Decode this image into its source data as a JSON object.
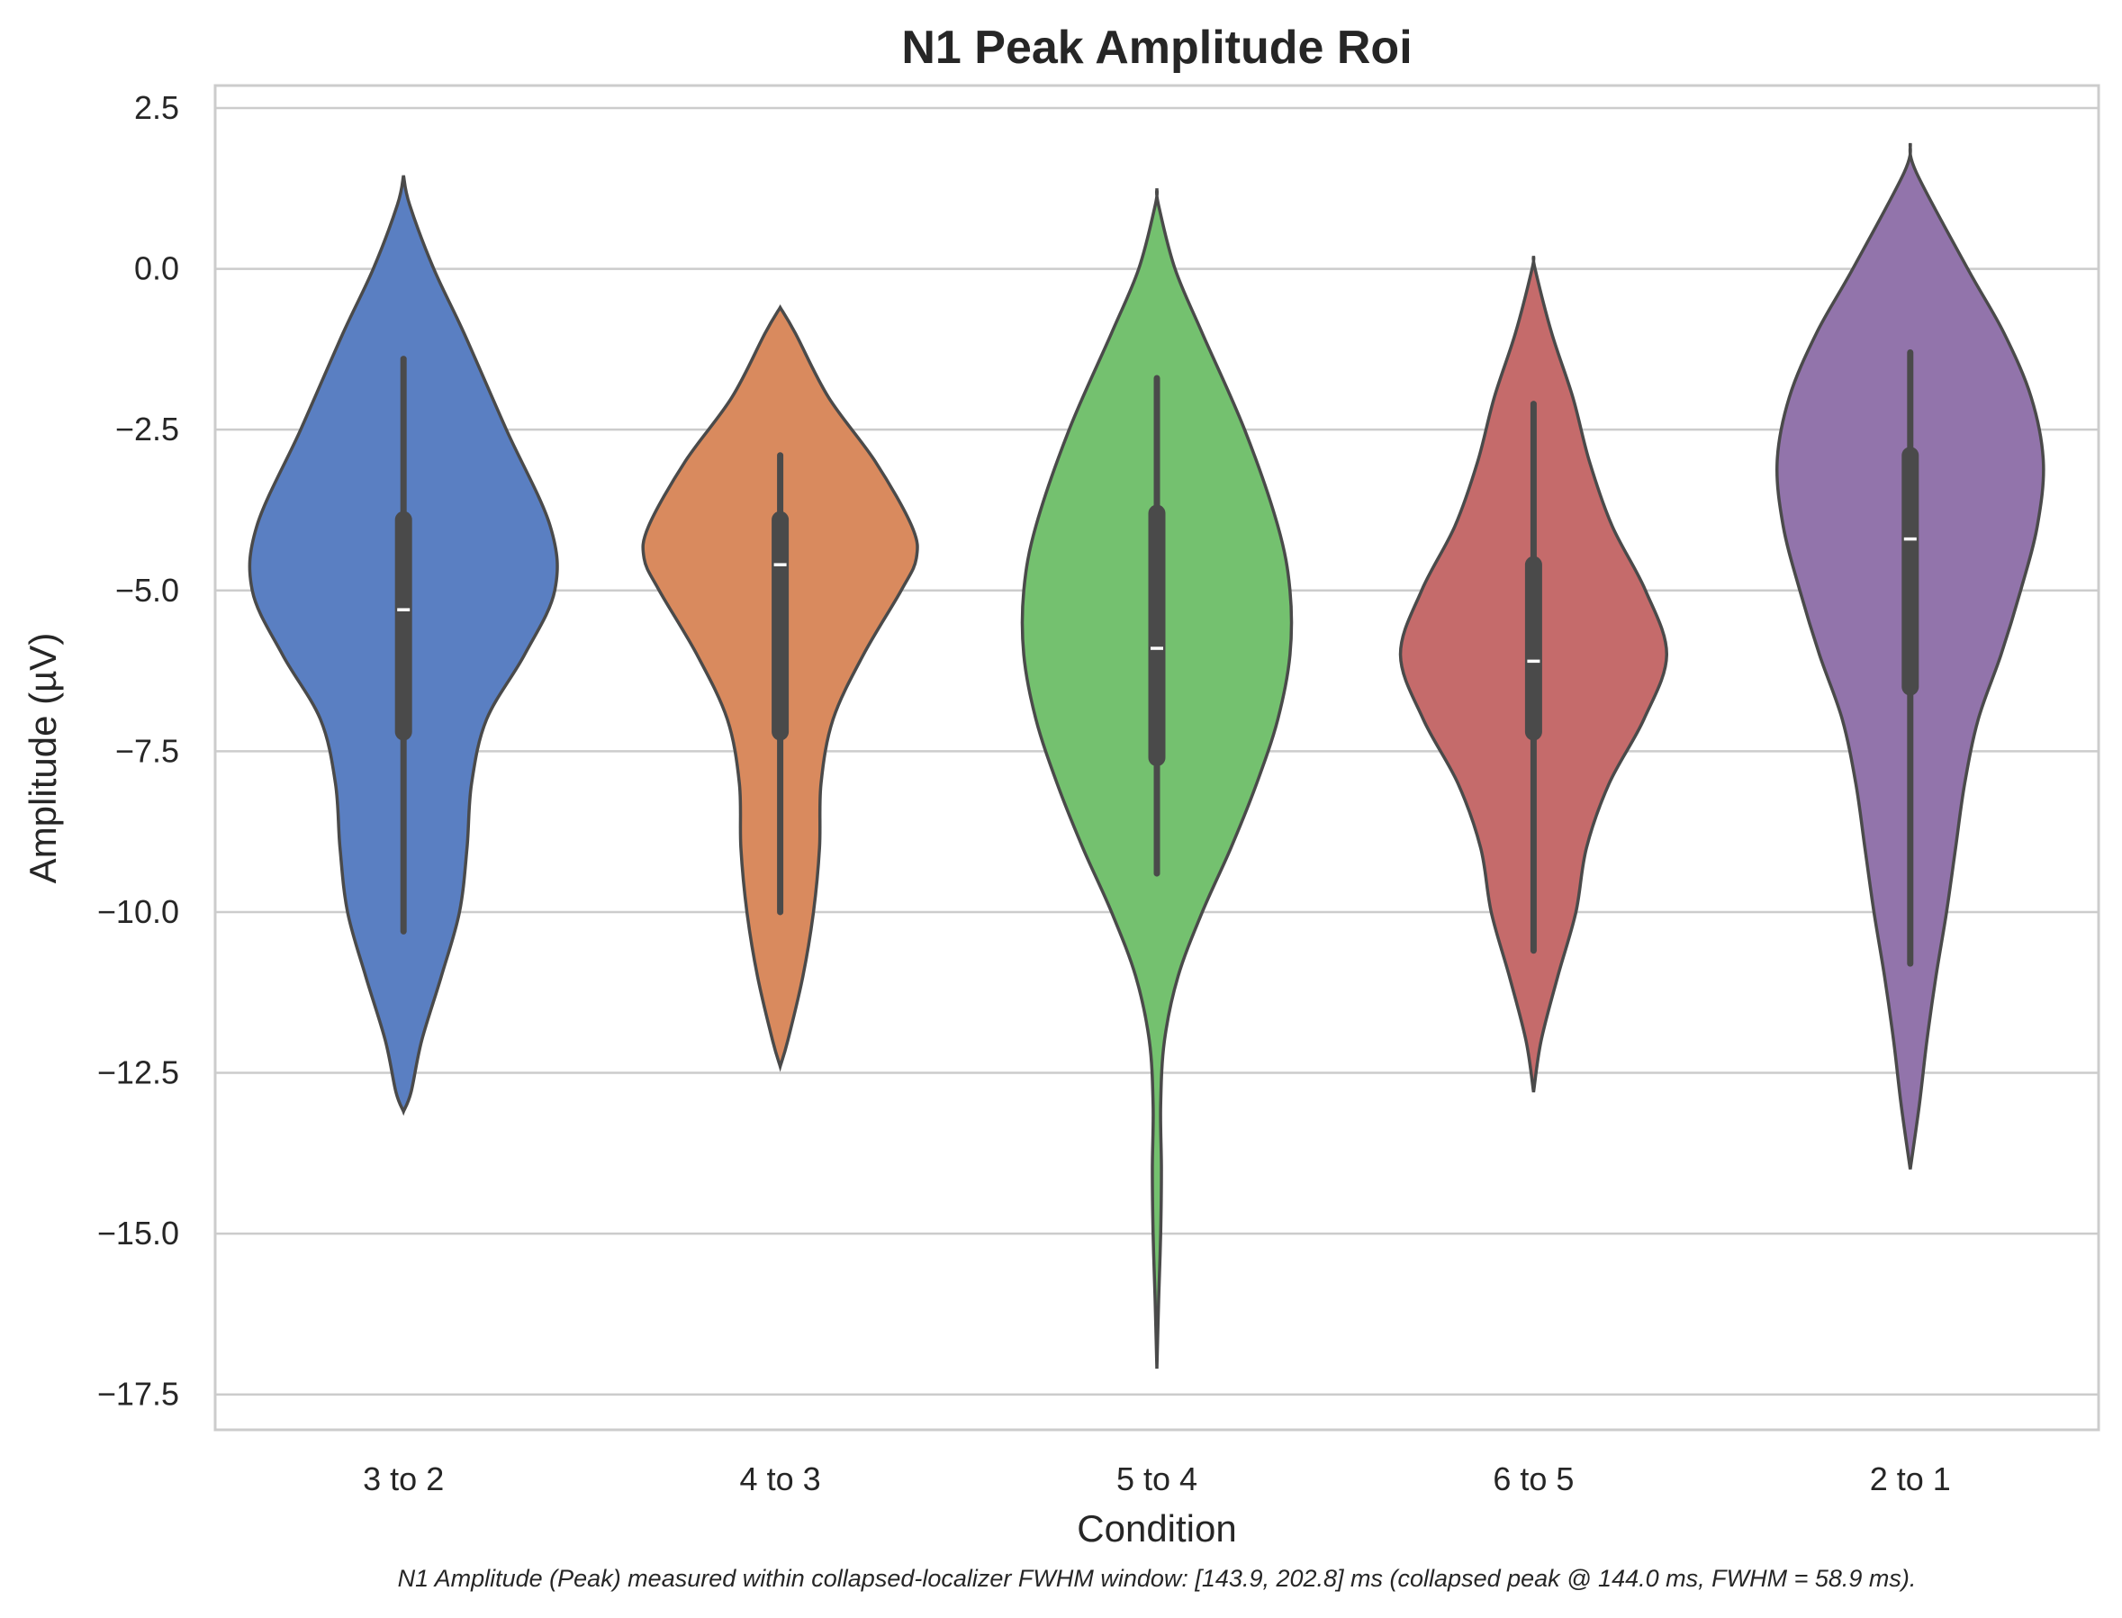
{
  "chart_data": {
    "type": "violin",
    "title": "N1 Peak Amplitude Roi",
    "xlabel": "Condition",
    "ylabel": "Amplitude (µV)",
    "caption": "N1 Amplitude (Peak) measured within collapsed-localizer FWHM window: [143.9, 202.8] ms (collapsed peak @ 144.0 ms, FWHM = 58.9 ms).",
    "ylim": [
      -18.05,
      2.85
    ],
    "yticks": [
      2.5,
      0.0,
      -2.5,
      -5.0,
      -7.5,
      -10.0,
      -12.5,
      -15.0,
      -17.5
    ],
    "ytick_labels": [
      "2.5",
      "0.0",
      "−2.5",
      "−5.0",
      "−7.5",
      "−10.0",
      "−12.5",
      "−15.0",
      "−17.5"
    ],
    "grid": true,
    "categories": [
      "3 to 2",
      "4 to 3",
      "5 to 4",
      "6 to 5",
      "2 to 1"
    ],
    "series": [
      {
        "category": "3 to 2",
        "color": "#5a7fc2",
        "median": -5.3,
        "q1": -7.2,
        "q3": -3.9,
        "whisker_low": -10.3,
        "whisker_high": -1.4,
        "density": [
          [
            1.45,
            0.0
          ],
          [
            1.0,
            0.04
          ],
          [
            0.0,
            0.2
          ],
          [
            -1.0,
            0.4
          ],
          [
            -2.5,
            0.68
          ],
          [
            -4.0,
            0.97
          ],
          [
            -5.0,
            1.0
          ],
          [
            -6.0,
            0.8
          ],
          [
            -7.0,
            0.55
          ],
          [
            -8.0,
            0.45
          ],
          [
            -9.0,
            0.42
          ],
          [
            -10.0,
            0.37
          ],
          [
            -11.0,
            0.25
          ],
          [
            -12.0,
            0.12
          ],
          [
            -12.8,
            0.05
          ],
          [
            -13.1,
            0.0
          ]
        ]
      },
      {
        "category": "4 to 3",
        "color": "#d98a5e",
        "median": -4.6,
        "q1": -7.2,
        "q3": -3.9,
        "whisker_low": -10.0,
        "whisker_high": -2.9,
        "density": [
          [
            -0.6,
            0.0
          ],
          [
            -1.0,
            0.1
          ],
          [
            -2.0,
            0.32
          ],
          [
            -3.0,
            0.63
          ],
          [
            -4.0,
            0.87
          ],
          [
            -4.5,
            0.9
          ],
          [
            -5.0,
            0.8
          ],
          [
            -6.0,
            0.55
          ],
          [
            -7.0,
            0.35
          ],
          [
            -8.0,
            0.27
          ],
          [
            -9.0,
            0.26
          ],
          [
            -10.0,
            0.22
          ],
          [
            -11.0,
            0.15
          ],
          [
            -12.0,
            0.05
          ],
          [
            -12.4,
            0.0
          ]
        ]
      },
      {
        "category": "5 to 4",
        "color": "#74c16f",
        "median": -5.9,
        "q1": -7.6,
        "q3": -3.8,
        "whisker_low": -9.4,
        "whisker_high": -1.7,
        "density": [
          [
            1.25,
            0.0
          ],
          [
            1.0,
            0.01
          ],
          [
            0.0,
            0.12
          ],
          [
            -1.0,
            0.3
          ],
          [
            -2.5,
            0.58
          ],
          [
            -4.0,
            0.8
          ],
          [
            -5.0,
            0.88
          ],
          [
            -6.0,
            0.88
          ],
          [
            -7.0,
            0.8
          ],
          [
            -8.0,
            0.66
          ],
          [
            -9.0,
            0.49
          ],
          [
            -10.0,
            0.3
          ],
          [
            -11.0,
            0.14
          ],
          [
            -12.0,
            0.05
          ],
          [
            -13.0,
            0.025
          ],
          [
            -14.0,
            0.03
          ],
          [
            -15.0,
            0.025
          ],
          [
            -16.0,
            0.012
          ],
          [
            -17.1,
            0.0
          ]
        ]
      },
      {
        "category": "6 to 5",
        "color": "#c56b6b",
        "median": -6.1,
        "q1": -7.2,
        "q3": -4.6,
        "whisker_low": -10.6,
        "whisker_high": -2.1,
        "density": [
          [
            0.2,
            0.0
          ],
          [
            0.0,
            0.01
          ],
          [
            -1.0,
            0.12
          ],
          [
            -2.0,
            0.26
          ],
          [
            -3.0,
            0.37
          ],
          [
            -4.0,
            0.52
          ],
          [
            -5.0,
            0.74
          ],
          [
            -6.0,
            0.88
          ],
          [
            -7.0,
            0.73
          ],
          [
            -8.0,
            0.5
          ],
          [
            -9.0,
            0.35
          ],
          [
            -10.0,
            0.28
          ],
          [
            -11.0,
            0.16
          ],
          [
            -12.0,
            0.05
          ],
          [
            -12.8,
            0.0
          ]
        ]
      },
      {
        "category": "2 to 1",
        "color": "#9274ab",
        "median": -4.2,
        "q1": -6.5,
        "q3": -2.9,
        "whisker_low": -10.8,
        "whisker_high": -1.3,
        "density": [
          [
            1.95,
            0.0
          ],
          [
            1.5,
            0.04
          ],
          [
            0.0,
            0.38
          ],
          [
            -1.0,
            0.62
          ],
          [
            -2.0,
            0.8
          ],
          [
            -3.0,
            0.88
          ],
          [
            -4.0,
            0.84
          ],
          [
            -5.0,
            0.73
          ],
          [
            -6.0,
            0.6
          ],
          [
            -7.0,
            0.45
          ],
          [
            -8.0,
            0.36
          ],
          [
            -9.0,
            0.3
          ],
          [
            -10.0,
            0.24
          ],
          [
            -11.0,
            0.17
          ],
          [
            -12.0,
            0.11
          ],
          [
            -13.0,
            0.06
          ],
          [
            -14.0,
            0.0
          ]
        ]
      }
    ]
  }
}
